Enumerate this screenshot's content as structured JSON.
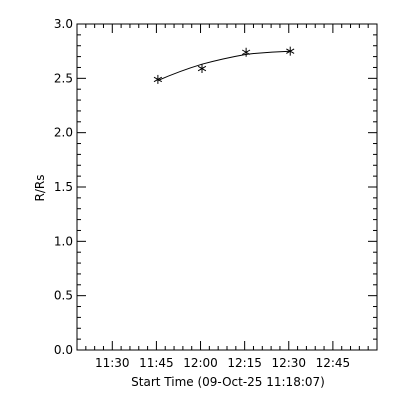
{
  "chart_data": {
    "type": "line",
    "xlabel": "Start Time (09-Oct-25 11:18:07)",
    "ylabel": "R/Rs",
    "x_tick_labels": [
      "11:30",
      "11:45",
      "12:00",
      "12:15",
      "12:30",
      "12:45"
    ],
    "x_ticks_minutes": [
      690,
      705,
      720,
      735,
      750,
      765
    ],
    "xlim_minutes": [
      678,
      780
    ],
    "ylim": [
      0.0,
      3.0
    ],
    "y_ticks": [
      0.0,
      0.5,
      1.0,
      1.5,
      2.0,
      2.5,
      3.0
    ],
    "y_tick_labels": [
      "0.0",
      "0.5",
      "1.0",
      "1.5",
      "2.0",
      "2.5",
      "3.0"
    ],
    "series": [
      {
        "marker": "asterisk",
        "x_minutes": [
          705.5,
          720.5,
          735.5,
          750.5
        ],
        "y": [
          2.49,
          2.59,
          2.74,
          2.75
        ],
        "fit_y": [
          2.48,
          2.63,
          2.72,
          2.75
        ]
      }
    ],
    "grid": false,
    "colors": {
      "axes": "#000000",
      "line": "#000000",
      "background": "#ffffff"
    }
  }
}
